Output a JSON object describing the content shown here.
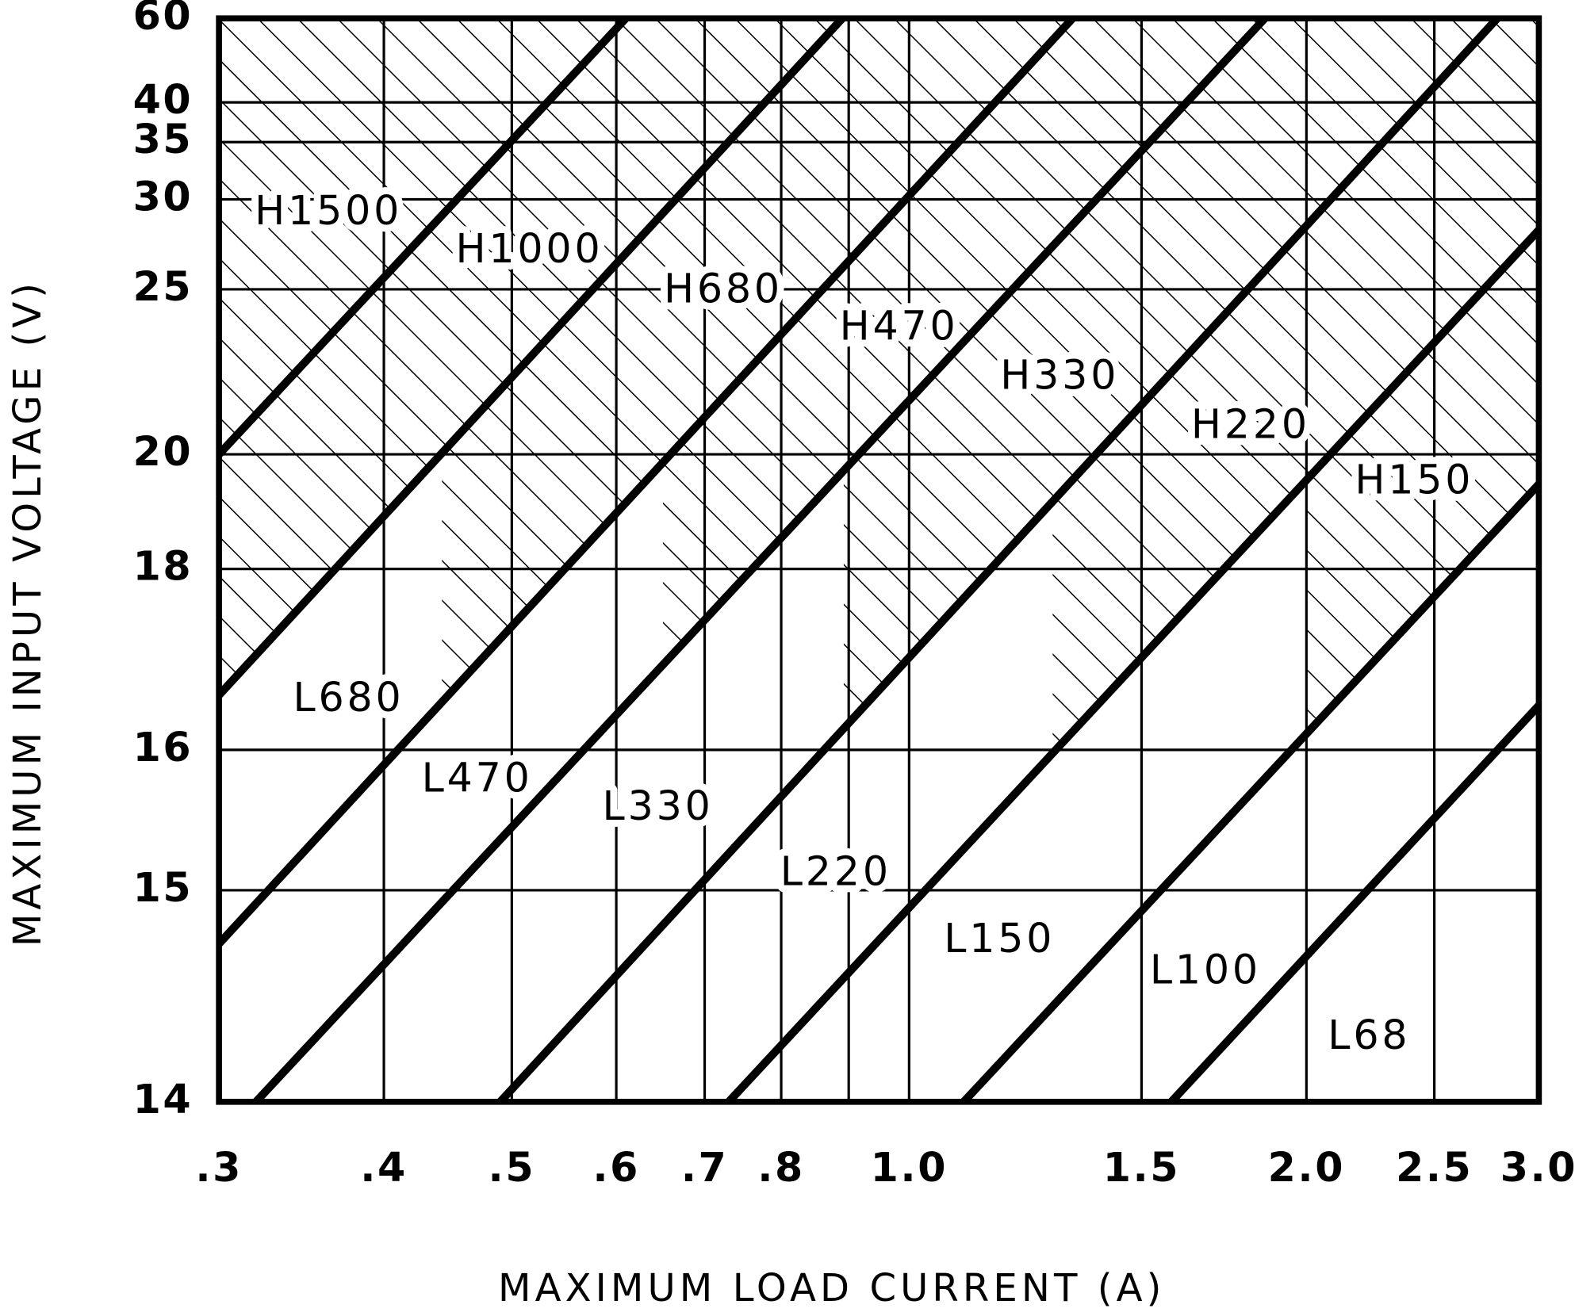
{
  "chart_data": {
    "type": "line",
    "xlabel": "MAXIMUM LOAD CURRENT (A)",
    "ylabel": "MAXIMUM INPUT VOLTAGE (V)",
    "xscale": "log",
    "xlim": [
      0.3,
      3.0
    ],
    "ylim": [
      14,
      60
    ],
    "xticks": [
      {
        "value": 0.3,
        "label": ".3"
      },
      {
        "value": 0.4,
        "label": ".4"
      },
      {
        "value": 0.5,
        "label": ".5"
      },
      {
        "value": 0.6,
        "label": ".6"
      },
      {
        "value": 0.7,
        "label": ".7"
      },
      {
        "value": 0.8,
        "label": ".8"
      },
      {
        "value": 1.0,
        "label": "1.0"
      },
      1.5,
      {
        "value": 2.0,
        "label": "2.0"
      },
      2.5,
      {
        "value": 3.0,
        "label": "3.0"
      }
    ],
    "xminor": [
      0.9
    ],
    "yticks": [
      14,
      15,
      16,
      18,
      20,
      25,
      30,
      35,
      40,
      60
    ],
    "grid": true,
    "color": "#000000",
    "series": [
      {
        "x": [
          0.3,
          0.61
        ],
        "values": [
          20,
          60
        ]
      },
      {
        "x": [
          0.3,
          0.89
        ],
        "values": [
          16.5,
          60
        ]
      },
      {
        "x": [
          0.3,
          1.33
        ],
        "values": [
          14.7,
          60
        ]
      },
      {
        "x": [
          0.32,
          1.86
        ],
        "values": [
          14,
          60
        ]
      },
      {
        "x": [
          0.49,
          2.79
        ],
        "values": [
          14,
          60
        ]
      },
      {
        "x": [
          0.73,
          3.0
        ],
        "values": [
          14,
          28
        ]
      },
      {
        "x": [
          1.1,
          3.0
        ],
        "values": [
          14,
          19.4
        ]
      },
      {
        "x": [
          1.58,
          3.0
        ],
        "values": [
          14,
          16.4
        ]
      }
    ],
    "annotations": [
      "H1500",
      "H1000",
      "H680",
      "H470",
      "H330",
      "H220",
      "H150",
      "L680",
      "L470",
      "L330",
      "L220",
      "L150",
      "L100",
      "L68"
    ]
  }
}
